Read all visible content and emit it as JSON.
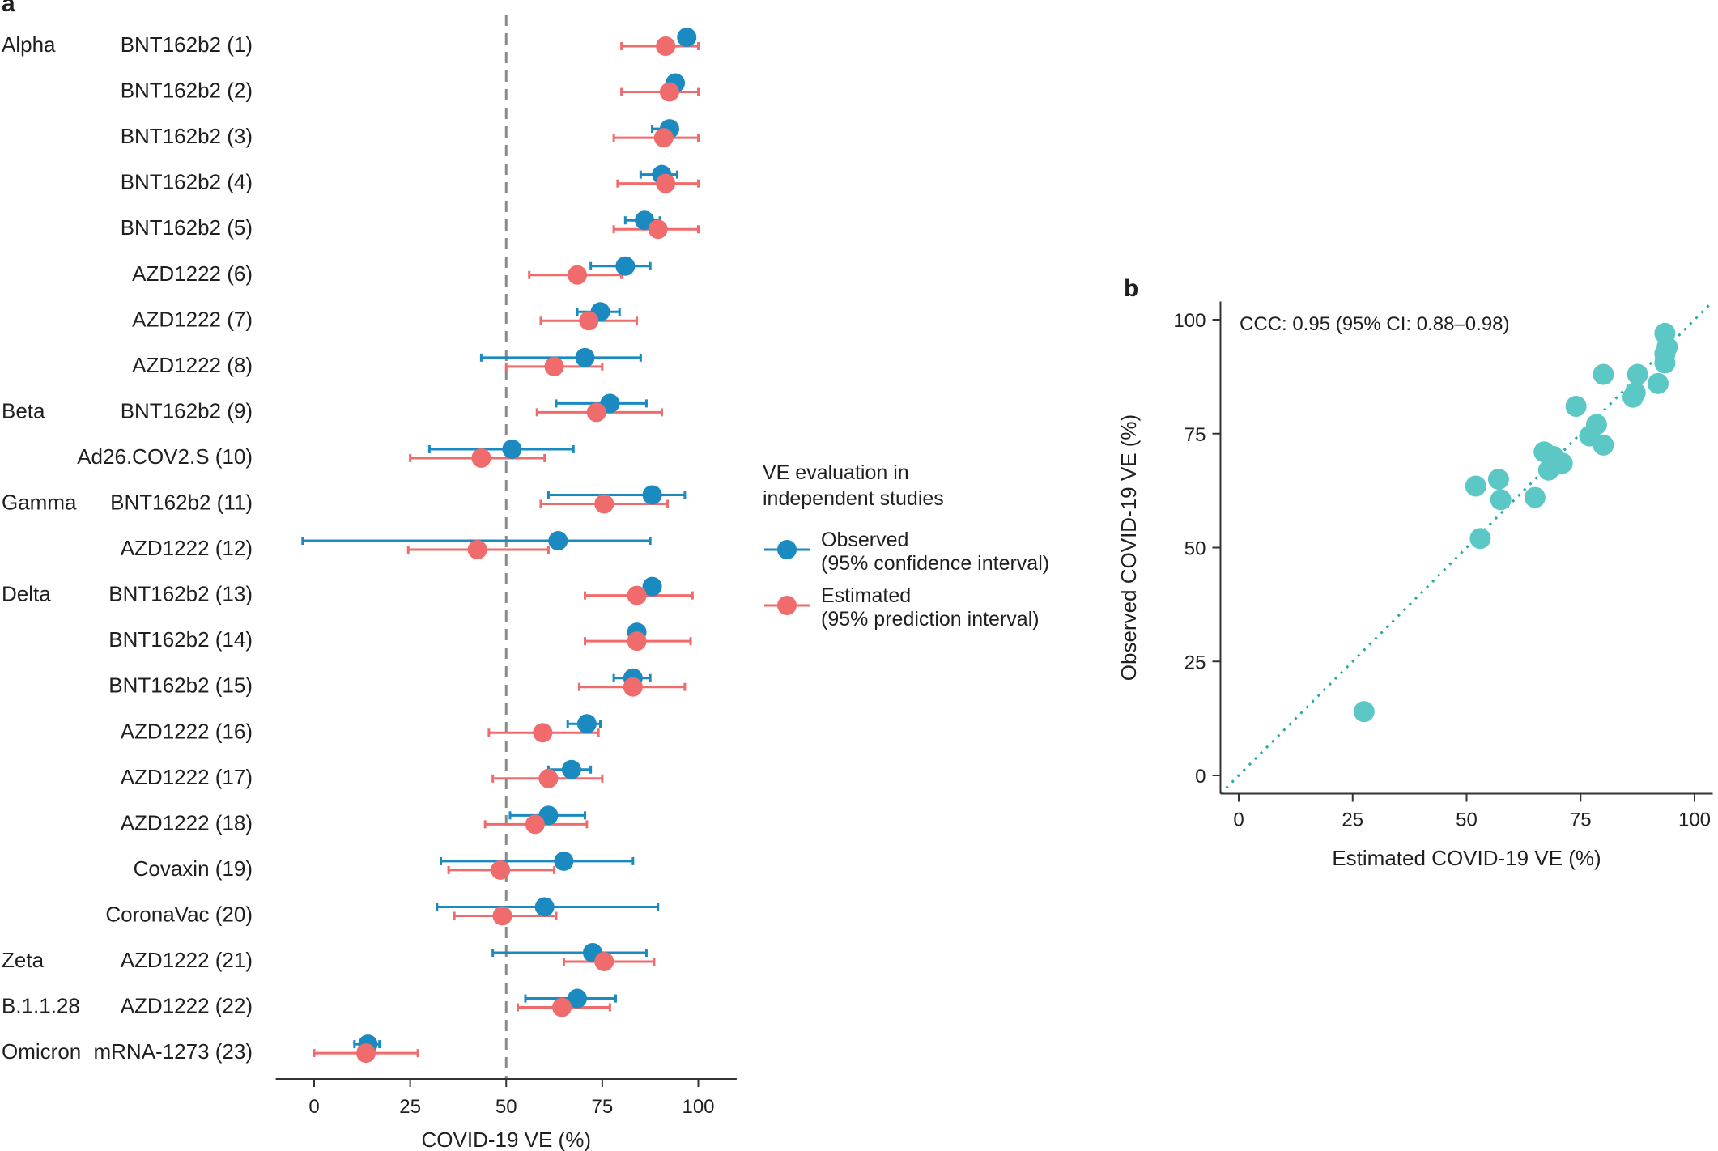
{
  "chart_data": [
    {
      "panel": "a",
      "type": "scatter",
      "subtype": "forest",
      "xlabel": "COVID-19 VE (%)",
      "xlim": [
        -10,
        110
      ],
      "xticks": [
        0,
        25,
        50,
        75,
        100
      ],
      "reference_line": {
        "x": 50,
        "style": "dashed"
      },
      "legend": {
        "title": [
          "VE evaluation in",
          "independent studies"
        ],
        "placement": "right",
        "entries": [
          {
            "key": "observed",
            "lines": [
              "Observed",
              "(95% confidence interval)"
            ],
            "color": "#1a8ac0"
          },
          {
            "key": "estimated",
            "lines": [
              "Estimated",
              "(95% prediction interval)"
            ],
            "color": "#f06b6b"
          }
        ]
      },
      "rows": [
        {
          "variant": "Alpha",
          "vaccine": "BNT162b2 (1)",
          "observed": {
            "ve": 97,
            "lo": null,
            "hi": null
          },
          "estimated": {
            "ve": 91.5,
            "lo": 80,
            "hi": 100
          }
        },
        {
          "variant": "",
          "vaccine": "BNT162b2 (2)",
          "observed": {
            "ve": 94,
            "lo": null,
            "hi": null
          },
          "estimated": {
            "ve": 92.5,
            "lo": 80,
            "hi": 100
          }
        },
        {
          "variant": "",
          "vaccine": "BNT162b2 (3)",
          "observed": {
            "ve": 92.5,
            "lo": 88,
            "hi": 94
          },
          "estimated": {
            "ve": 91,
            "lo": 78,
            "hi": 100
          }
        },
        {
          "variant": "",
          "vaccine": "BNT162b2 (4)",
          "observed": {
            "ve": 90.5,
            "lo": 85,
            "hi": 94.5
          },
          "estimated": {
            "ve": 91.5,
            "lo": 79,
            "hi": 100
          }
        },
        {
          "variant": "",
          "vaccine": "BNT162b2 (5)",
          "observed": {
            "ve": 86,
            "lo": 81,
            "hi": 90
          },
          "estimated": {
            "ve": 89.5,
            "lo": 78,
            "hi": 100
          }
        },
        {
          "variant": "",
          "vaccine": "AZD1222 (6)",
          "observed": {
            "ve": 81,
            "lo": 72,
            "hi": 87.5
          },
          "estimated": {
            "ve": 68.5,
            "lo": 56,
            "hi": 80
          }
        },
        {
          "variant": "",
          "vaccine": "AZD1222 (7)",
          "observed": {
            "ve": 74.5,
            "lo": 68.5,
            "hi": 79.5
          },
          "estimated": {
            "ve": 71.5,
            "lo": 59,
            "hi": 84
          }
        },
        {
          "variant": "",
          "vaccine": "AZD1222 (8)",
          "observed": {
            "ve": 70.5,
            "lo": 43.5,
            "hi": 85
          },
          "estimated": {
            "ve": 62.5,
            "lo": 50,
            "hi": 75
          }
        },
        {
          "variant": "Beta",
          "vaccine": "BNT162b2 (9)",
          "observed": {
            "ve": 77,
            "lo": 63,
            "hi": 86.5
          },
          "estimated": {
            "ve": 73.5,
            "lo": 58,
            "hi": 90.5
          }
        },
        {
          "variant": "",
          "vaccine": "Ad26.COV2.S (10)",
          "observed": {
            "ve": 51.5,
            "lo": 30,
            "hi": 67.5
          },
          "estimated": {
            "ve": 43.5,
            "lo": 25,
            "hi": 60
          }
        },
        {
          "variant": "Gamma",
          "vaccine": "BNT162b2 (11)",
          "observed": {
            "ve": 88,
            "lo": 61,
            "hi": 96.5
          },
          "estimated": {
            "ve": 75.5,
            "lo": 59,
            "hi": 92
          }
        },
        {
          "variant": "",
          "vaccine": "AZD1222 (12)",
          "observed": {
            "ve": 63.5,
            "lo": -3,
            "hi": 87.5
          },
          "estimated": {
            "ve": 42.5,
            "lo": 24.5,
            "hi": 61
          }
        },
        {
          "variant": "Delta",
          "vaccine": "BNT162b2 (13)",
          "observed": {
            "ve": 88,
            "lo": null,
            "hi": null
          },
          "estimated": {
            "ve": 84,
            "lo": 70.5,
            "hi": 98.5
          }
        },
        {
          "variant": "",
          "vaccine": "BNT162b2 (14)",
          "observed": {
            "ve": 84,
            "lo": null,
            "hi": null
          },
          "estimated": {
            "ve": 84,
            "lo": 70.5,
            "hi": 98
          }
        },
        {
          "variant": "",
          "vaccine": "BNT162b2 (15)",
          "observed": {
            "ve": 83,
            "lo": 78,
            "hi": 87.5
          },
          "estimated": {
            "ve": 83,
            "lo": 69,
            "hi": 96.5
          }
        },
        {
          "variant": "",
          "vaccine": "AZD1222 (16)",
          "observed": {
            "ve": 71,
            "lo": 66,
            "hi": 74.5
          },
          "estimated": {
            "ve": 59.5,
            "lo": 45.5,
            "hi": 74
          }
        },
        {
          "variant": "",
          "vaccine": "AZD1222 (17)",
          "observed": {
            "ve": 67,
            "lo": 61,
            "hi": 72
          },
          "estimated": {
            "ve": 61,
            "lo": 46.5,
            "hi": 75
          }
        },
        {
          "variant": "",
          "vaccine": "AZD1222 (18)",
          "observed": {
            "ve": 61,
            "lo": 51,
            "hi": 70.5
          },
          "estimated": {
            "ve": 57.5,
            "lo": 44.5,
            "hi": 71
          }
        },
        {
          "variant": "",
          "vaccine": "Covaxin (19)",
          "observed": {
            "ve": 65,
            "lo": 33,
            "hi": 83
          },
          "estimated": {
            "ve": 48.5,
            "lo": 35,
            "hi": 62.5
          }
        },
        {
          "variant": "",
          "vaccine": "CoronaVac (20)",
          "observed": {
            "ve": 60,
            "lo": 32,
            "hi": 89.5
          },
          "estimated": {
            "ve": 49,
            "lo": 36.5,
            "hi": 63
          }
        },
        {
          "variant": "Zeta",
          "vaccine": "AZD1222 (21)",
          "observed": {
            "ve": 72.5,
            "lo": 46.5,
            "hi": 86.5
          },
          "estimated": {
            "ve": 75.5,
            "lo": 65,
            "hi": 88.5
          }
        },
        {
          "variant": "B.1.1.28",
          "vaccine": "AZD1222 (22)",
          "observed": {
            "ve": 68.5,
            "lo": 55,
            "hi": 78.5
          },
          "estimated": {
            "ve": 64.5,
            "lo": 53,
            "hi": 77
          }
        },
        {
          "variant": "Omicron",
          "vaccine": "mRNA-1273 (23)",
          "observed": {
            "ve": 14,
            "lo": 10.5,
            "hi": 17
          },
          "estimated": {
            "ve": 13.5,
            "lo": 0,
            "hi": 27
          }
        }
      ]
    },
    {
      "panel": "b",
      "type": "scatter",
      "xlabel": "Estimated COVID-19 VE (%)",
      "ylabel": "Observed COVID-19 VE (%)",
      "annotation": "CCC: 0.95 (95% CI: 0.88–0.98)",
      "xlim": [
        -4,
        104
      ],
      "ylim": [
        -4,
        104
      ],
      "xticks": [
        0,
        25,
        50,
        75,
        100
      ],
      "yticks": [
        0,
        25,
        50,
        75,
        100
      ],
      "identity_line": true,
      "color": "#5cc8c6",
      "points": [
        {
          "x": 93.5,
          "y": 97
        },
        {
          "x": 94,
          "y": 94
        },
        {
          "x": 93.5,
          "y": 92.5
        },
        {
          "x": 93.5,
          "y": 90.5
        },
        {
          "x": 92,
          "y": 86
        },
        {
          "x": 87.5,
          "y": 88
        },
        {
          "x": 80,
          "y": 88
        },
        {
          "x": 87,
          "y": 84
        },
        {
          "x": 86.5,
          "y": 83
        },
        {
          "x": 74,
          "y": 81
        },
        {
          "x": 78.5,
          "y": 77
        },
        {
          "x": 77,
          "y": 74.5
        },
        {
          "x": 80,
          "y": 72.5
        },
        {
          "x": 67,
          "y": 71
        },
        {
          "x": 69,
          "y": 70
        },
        {
          "x": 71,
          "y": 68.5
        },
        {
          "x": 68,
          "y": 67
        },
        {
          "x": 52,
          "y": 63.5
        },
        {
          "x": 57,
          "y": 65
        },
        {
          "x": 57.5,
          "y": 60.5
        },
        {
          "x": 65,
          "y": 61
        },
        {
          "x": 53,
          "y": 52
        },
        {
          "x": 27.5,
          "y": 14
        }
      ]
    }
  ]
}
